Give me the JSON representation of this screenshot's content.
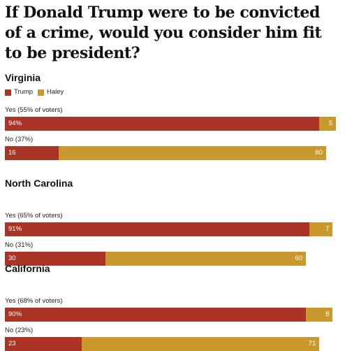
{
  "title": "If Donald Trump were to be convicted of a crime, would you consider him fit to be president?",
  "legend": [
    {
      "name": "Trump",
      "color": "#aa3527"
    },
    {
      "name": "Haley",
      "color": "#c9992d"
    }
  ],
  "chart_data": [
    {
      "type": "bar",
      "title": "Virginia",
      "stacked": true,
      "orientation": "horizontal",
      "categories": [
        "Yes (55% of voters)",
        "No (37%)"
      ],
      "series": [
        {
          "name": "Trump",
          "values": [
            94,
            16
          ],
          "labels": [
            "94%",
            "16"
          ]
        },
        {
          "name": "Haley",
          "values": [
            5,
            80
          ],
          "labels": [
            "5",
            "80"
          ]
        }
      ],
      "xlim": [
        0,
        100
      ]
    },
    {
      "type": "bar",
      "title": "North Carolina",
      "stacked": true,
      "orientation": "horizontal",
      "categories": [
        "Yes (65% of voters)",
        "No (31%)"
      ],
      "series": [
        {
          "name": "Trump",
          "values": [
            91,
            30
          ],
          "labels": [
            "91%",
            "30"
          ]
        },
        {
          "name": "Haley",
          "values": [
            7,
            60
          ],
          "labels": [
            "7",
            "60"
          ]
        }
      ],
      "xlim": [
        0,
        100
      ]
    },
    {
      "type": "bar",
      "title": "California",
      "stacked": true,
      "orientation": "horizontal",
      "categories": [
        "Yes (68% of voters)",
        "No (23%)"
      ],
      "series": [
        {
          "name": "Trump",
          "values": [
            90,
            23
          ],
          "labels": [
            "90%",
            "23"
          ]
        },
        {
          "name": "Haley",
          "values": [
            8,
            71
          ],
          "labels": [
            "8",
            "71"
          ]
        }
      ],
      "xlim": [
        0,
        100
      ]
    }
  ]
}
